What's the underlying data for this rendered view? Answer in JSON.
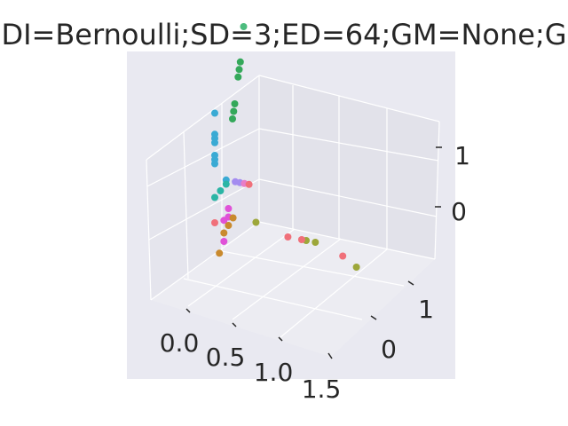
{
  "chart_data": {
    "type": "scatter",
    "projection": "3d",
    "title": "DI=Bernoulli;SD=3;ED=64;GM=None;G",
    "background": "#e9e9f1",
    "grid": true,
    "x_ticks": [
      "0.0",
      "0.5",
      "1.0",
      "1.5"
    ],
    "y_ticks": [
      "0",
      "1"
    ],
    "z_ticks": [
      "0",
      "1"
    ],
    "points": [
      {
        "x": 1.55,
        "y": 0.0,
        "z": -0.2,
        "color": "#9da73a"
      },
      {
        "x": 1.4,
        "y": 0.0,
        "z": -0.1,
        "color": "#f0707a"
      },
      {
        "x": 1.1,
        "y": 0.0,
        "z": 0.0,
        "color": "#9da73a"
      },
      {
        "x": 1.0,
        "y": 0.0,
        "z": 0.0,
        "color": "#9da73a"
      },
      {
        "x": 0.95,
        "y": 0.0,
        "z": 0.0,
        "color": "#f0707a"
      },
      {
        "x": 0.8,
        "y": 0.0,
        "z": 0.0,
        "color": "#f0707a"
      },
      {
        "x": 0.45,
        "y": 0.0,
        "z": 0.1,
        "color": "#9da73a"
      },
      {
        "x": 0.0,
        "y": 0.0,
        "z": 0.0,
        "color": "#f0707a"
      },
      {
        "x": 0.0,
        "y": 1.3,
        "z": 1.3,
        "color": "#4cbc7e"
      },
      {
        "x": 0.0,
        "y": 1.15,
        "z": 1.0,
        "color": "#34a85a"
      },
      {
        "x": 0.0,
        "y": 1.1,
        "z": 0.95,
        "color": "#34a85a"
      },
      {
        "x": 0.0,
        "y": 1.05,
        "z": 0.9,
        "color": "#34a85a"
      },
      {
        "x": 0.0,
        "y": 0.9,
        "z": 0.7,
        "color": "#34a85a"
      },
      {
        "x": 0.0,
        "y": 0.85,
        "z": 0.65,
        "color": "#34a85a"
      },
      {
        "x": 0.0,
        "y": 0.8,
        "z": 0.6,
        "color": "#34a85a"
      },
      {
        "x": 0.0,
        "y": 0.0,
        "z": 1.3,
        "color": "#3aaad4"
      },
      {
        "x": 0.0,
        "y": 0.0,
        "z": 1.05,
        "color": "#3aaad4"
      },
      {
        "x": 0.0,
        "y": 0.0,
        "z": 1.0,
        "color": "#3aaad4"
      },
      {
        "x": 0.0,
        "y": 0.0,
        "z": 0.95,
        "color": "#3aaad4"
      },
      {
        "x": 0.0,
        "y": 0.0,
        "z": 0.8,
        "color": "#3aaad4"
      },
      {
        "x": 0.0,
        "y": 0.0,
        "z": 0.75,
        "color": "#3aaad4"
      },
      {
        "x": 0.0,
        "y": 0.0,
        "z": 0.7,
        "color": "#3aaad4"
      },
      {
        "x": 0.1,
        "y": 0.1,
        "z": 0.45,
        "color": "#3aaad4"
      },
      {
        "x": 0.1,
        "y": 0.1,
        "z": 0.4,
        "color": "#2bb5a5"
      },
      {
        "x": 0.05,
        "y": 0.05,
        "z": 0.35,
        "color": "#2bb5a5"
      },
      {
        "x": 0.0,
        "y": 0.0,
        "z": 0.3,
        "color": "#2bb5a5"
      },
      {
        "x": 0.2,
        "y": 0.1,
        "z": 0.45,
        "color": "#a48cf0"
      },
      {
        "x": 0.25,
        "y": 0.1,
        "z": 0.45,
        "color": "#a48cf0"
      },
      {
        "x": 0.3,
        "y": 0.1,
        "z": 0.45,
        "color": "#e87ec8"
      },
      {
        "x": 0.35,
        "y": 0.1,
        "z": 0.45,
        "color": "#f0707a"
      },
      {
        "x": 0.15,
        "y": 0.0,
        "z": 0.2,
        "color": "#e052d8"
      },
      {
        "x": 0.15,
        "y": 0.0,
        "z": 0.1,
        "color": "#e052d8"
      },
      {
        "x": 0.1,
        "y": 0.0,
        "z": 0.05,
        "color": "#e052d8"
      },
      {
        "x": 0.1,
        "y": 0.0,
        "z": -0.2,
        "color": "#e052d8"
      },
      {
        "x": 0.2,
        "y": 0.0,
        "z": 0.1,
        "color": "#c98a2e"
      },
      {
        "x": 0.15,
        "y": 0.0,
        "z": 0.0,
        "color": "#c98a2e"
      },
      {
        "x": 0.1,
        "y": 0.0,
        "z": -0.1,
        "color": "#c98a2e"
      },
      {
        "x": 0.05,
        "y": 0.0,
        "z": -0.35,
        "color": "#c98a2e"
      }
    ]
  }
}
